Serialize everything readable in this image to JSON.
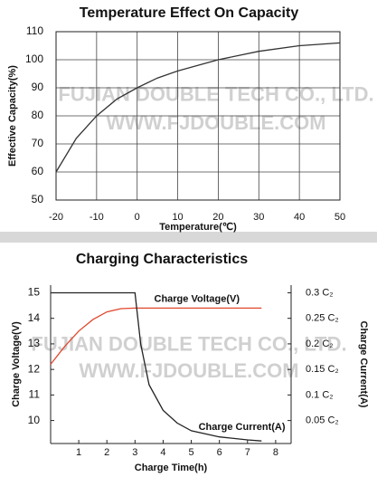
{
  "chart_data": [
    {
      "type": "line",
      "title": "Temperature Effect On Capacity",
      "x_label": "Temperature(℃)",
      "y_label": "Effective Capacity(%)",
      "watermark": [
        "FUJIAN DOUBLE TECH CO., LTD.",
        "WWW.FJDOUBLE.COM"
      ],
      "x": [
        -20,
        -15,
        -10,
        -5,
        0,
        5,
        10,
        20,
        30,
        40,
        50
      ],
      "series": [
        {
          "name": null,
          "color": "#333333",
          "values": [
            60,
            72,
            80,
            86,
            90,
            93.5,
            96,
            100,
            103,
            105,
            106
          ]
        }
      ],
      "xlim": [
        -20,
        50
      ],
      "xticks": [
        -20,
        -10,
        0,
        10,
        20,
        30,
        40,
        50
      ],
      "ylim": [
        50,
        110
      ],
      "yticks": [
        50,
        60,
        70,
        80,
        90,
        100,
        110
      ],
      "grid": true
    },
    {
      "type": "line",
      "title": "Charging Characteristics",
      "x_label": "Charge Time(h)",
      "y_label": "Charge Voltage(V)",
      "y2_label": "Charge Current(A)",
      "watermark": [
        "FUJIAN DOUBLE TECH CO., LTD.",
        "WWW.FJDOUBLE.COM"
      ],
      "x": [
        0,
        0.5,
        1,
        1.5,
        2,
        2.5,
        3,
        3.2,
        3.5,
        4,
        4.5,
        5,
        6,
        7,
        7.5
      ],
      "series": [
        {
          "name": "Charge Voltage(V)",
          "color": "#e0482e",
          "values": [
            12.2,
            12.9,
            13.5,
            13.95,
            14.25,
            14.38,
            14.4,
            14.4,
            14.4,
            14.4,
            14.4,
            14.4,
            14.4,
            14.4,
            14.4
          ]
        },
        {
          "name": "Charge Current(A)",
          "color": "#222222",
          "axis": "y2",
          "values": [
            0.3,
            0.3,
            0.3,
            0.3,
            0.3,
            0.3,
            0.3,
            0.2,
            0.12,
            0.07,
            0.045,
            0.03,
            0.018,
            0.012,
            0.01
          ]
        }
      ],
      "xlim": [
        0,
        8.55
      ],
      "xticks": [
        1,
        2,
        3,
        4,
        5,
        6,
        7,
        8
      ],
      "ylim": [
        9.1,
        15.3
      ],
      "yticks": [
        10,
        11,
        12,
        13,
        14,
        15
      ],
      "y2lim": [
        0.005,
        0.315
      ],
      "y2ticks": [
        {
          "value": 0.05,
          "label": "0.05 C₂"
        },
        {
          "value": 0.1,
          "label": "0.1 C₂"
        },
        {
          "value": 0.15,
          "label": "0.15 C₂"
        },
        {
          "value": 0.2,
          "label": "0.2 C₂"
        },
        {
          "value": 0.25,
          "label": "0.25 C₂"
        },
        {
          "value": 0.3,
          "label": "0.3 C₂"
        }
      ],
      "grid": false
    }
  ]
}
